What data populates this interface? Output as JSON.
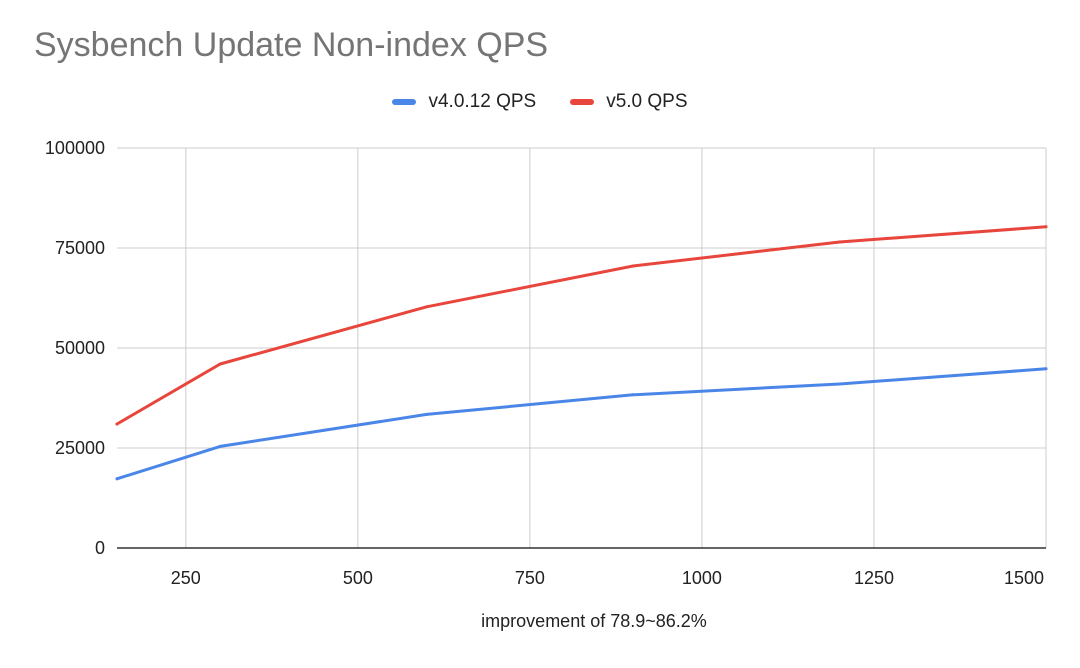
{
  "chart_data": {
    "type": "line",
    "title": "Sysbench Update Non-index QPS",
    "xlabel": "improvement of 78.9~86.2%",
    "ylabel": "",
    "xlim": [
      150,
      1500
    ],
    "ylim": [
      0,
      100000
    ],
    "x_ticks": [
      250,
      500,
      750,
      1000,
      1250,
      1500
    ],
    "y_ticks": [
      0,
      25000,
      50000,
      75000,
      100000
    ],
    "grid": true,
    "legend_position": "top",
    "x": [
      150,
      300,
      600,
      900,
      1200,
      1500
    ],
    "series": [
      {
        "name": "v4.0.12 QPS",
        "color": "#4a86e8",
        "values": [
          17300,
          25400,
          33400,
          38300,
          41000,
          44800
        ]
      },
      {
        "name": "v5.0 QPS",
        "color": "#e8453c",
        "values": [
          31000,
          46000,
          60300,
          70500,
          76500,
          80300
        ]
      }
    ]
  }
}
